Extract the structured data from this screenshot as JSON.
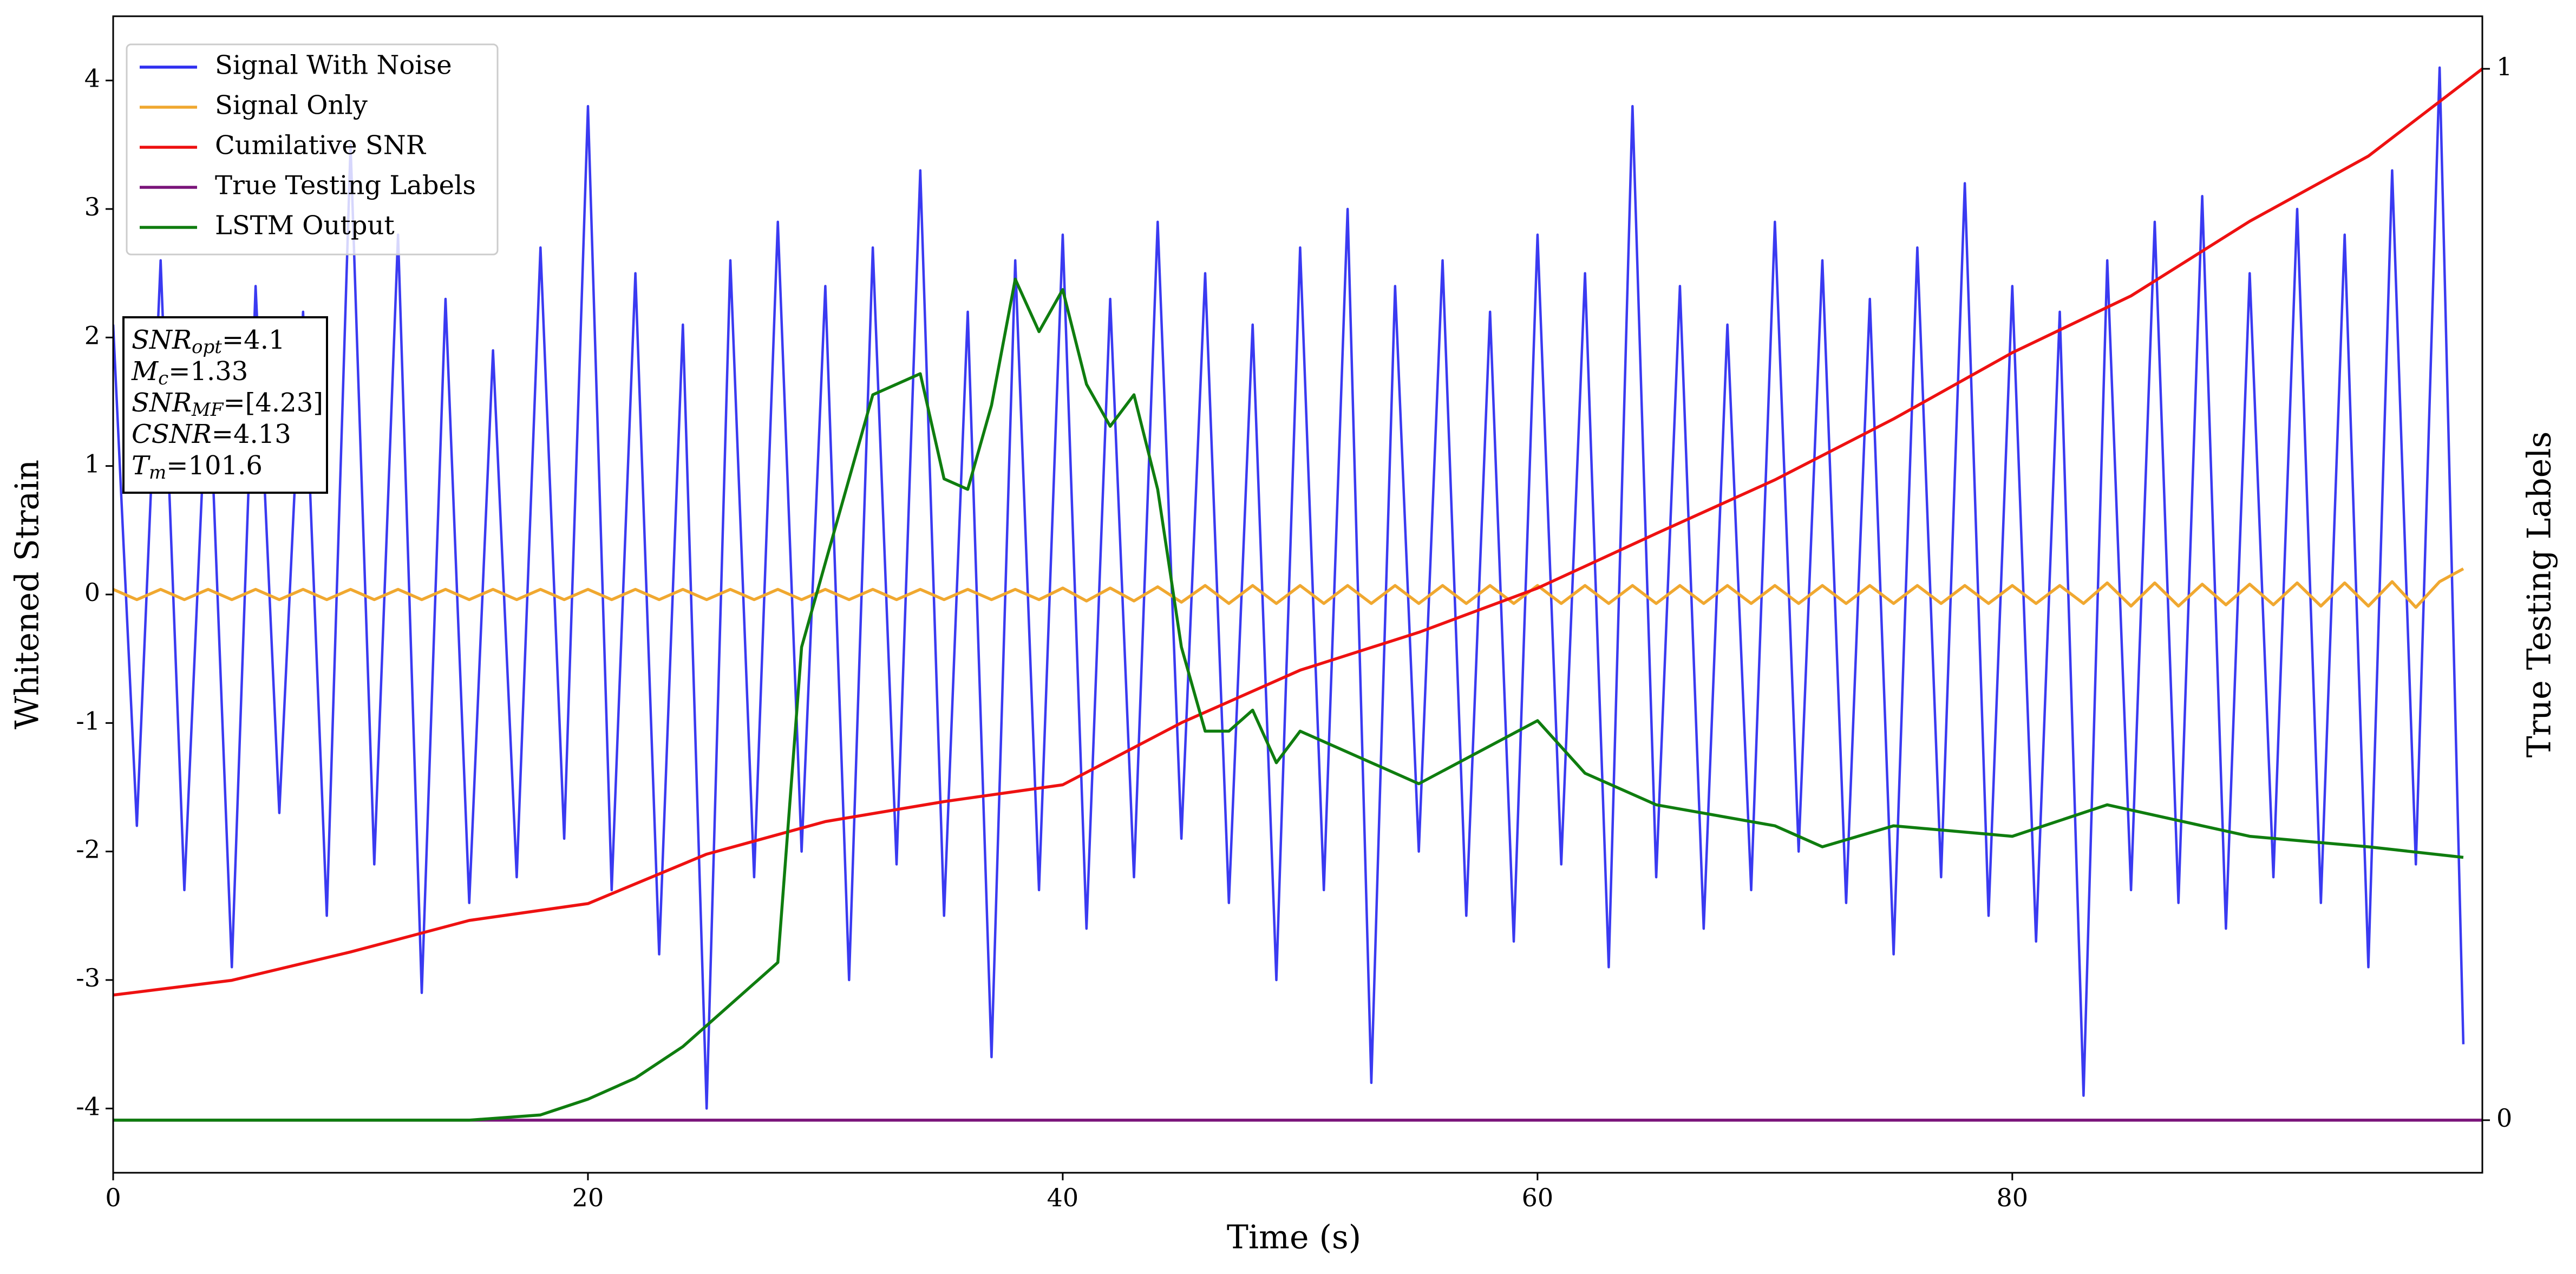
{
  "chart_data": {
    "type": "line",
    "xlabel": "Time (s)",
    "ylabel": "Whitened Strain",
    "y2label": "True Testing Labels",
    "xlim": [
      0,
      99.8
    ],
    "xticks": [
      0,
      20,
      40,
      60,
      80
    ],
    "ylim": [
      -4.5,
      4.5
    ],
    "yticks": [
      -4,
      -3,
      -2,
      -1,
      0,
      1,
      2,
      3,
      4
    ],
    "y2lim": [
      -0.05,
      1.05
    ],
    "y2ticks": [
      0,
      1
    ],
    "grid": false,
    "legend": "upper left",
    "annotation": [
      {
        "base": "SNR",
        "sub": "opt",
        "rest": "=4.1"
      },
      {
        "base": "M",
        "sub": "c",
        "rest": "=1.33"
      },
      {
        "base": "SNR",
        "sub": "MF",
        "rest": "=[4.23]"
      },
      {
        "base": "CSNR",
        "rest": "=4.13"
      },
      {
        "base": "T",
        "sub": "m",
        "rest": "=101.6"
      }
    ],
    "series": [
      {
        "name": "Signal With Noise",
        "color": "#2f2ff0",
        "x": [
          0,
          1,
          2,
          3,
          4,
          5,
          6,
          7,
          8,
          9,
          10,
          11,
          12,
          13,
          14,
          15,
          16,
          17,
          18,
          19,
          20,
          21,
          22,
          23,
          24,
          25,
          26,
          27,
          28,
          29,
          30,
          31,
          32,
          33,
          34,
          35,
          36,
          37,
          38,
          39,
          40,
          41,
          42,
          43,
          44,
          45,
          46,
          47,
          48,
          49,
          50,
          51,
          52,
          53,
          54,
          55,
          56,
          57,
          58,
          59,
          60,
          61,
          62,
          63,
          64,
          65,
          66,
          67,
          68,
          69,
          70,
          71,
          72,
          73,
          74,
          75,
          76,
          77,
          78,
          79,
          80,
          81,
          82,
          83,
          84,
          85,
          86,
          87,
          88,
          89,
          90,
          91,
          92,
          93,
          94,
          95,
          96,
          97,
          98,
          99
        ],
        "values": [
          2.1,
          -1.8,
          2.6,
          -2.3,
          1.9,
          -2.9,
          2.4,
          -1.7,
          2.2,
          -2.5,
          3.5,
          -2.1,
          2.8,
          -3.1,
          2.3,
          -2.4,
          1.9,
          -2.2,
          2.7,
          -1.9,
          3.8,
          -2.3,
          2.5,
          -2.8,
          2.1,
          -4.0,
          2.6,
          -2.2,
          2.9,
          -2.0,
          2.4,
          -3.0,
          2.7,
          -2.1,
          3.3,
          -2.5,
          2.2,
          -3.6,
          2.6,
          -2.3,
          2.8,
          -2.6,
          2.3,
          -2.2,
          2.9,
          -1.9,
          2.5,
          -2.4,
          2.1,
          -3.0,
          2.7,
          -2.3,
          3.0,
          -3.8,
          2.4,
          -2.0,
          2.6,
          -2.5,
          2.2,
          -2.7,
          2.8,
          -2.1,
          2.5,
          -2.9,
          3.8,
          -2.2,
          2.4,
          -2.6,
          2.1,
          -2.3,
          2.9,
          -2.0,
          2.6,
          -2.4,
          2.3,
          -2.8,
          2.7,
          -2.2,
          3.2,
          -2.5,
          2.4,
          -2.7,
          2.2,
          -3.9,
          2.6,
          -2.3,
          2.9,
          -2.4,
          3.1,
          -2.6,
          2.5,
          -2.2,
          3.0,
          -2.4,
          2.8,
          -2.9,
          3.3,
          -2.1,
          4.1,
          -3.5
        ]
      },
      {
        "name": "Signal Only",
        "color": "#f0a830",
        "x": [
          0,
          1,
          2,
          3,
          4,
          5,
          6,
          7,
          8,
          9,
          10,
          11,
          12,
          13,
          14,
          15,
          16,
          17,
          18,
          19,
          20,
          21,
          22,
          23,
          24,
          25,
          26,
          27,
          28,
          29,
          30,
          31,
          32,
          33,
          34,
          35,
          36,
          37,
          38,
          39,
          40,
          41,
          42,
          43,
          44,
          45,
          46,
          47,
          48,
          49,
          50,
          51,
          52,
          53,
          54,
          55,
          56,
          57,
          58,
          59,
          60,
          61,
          62,
          63,
          64,
          65,
          66,
          67,
          68,
          69,
          70,
          71,
          72,
          73,
          74,
          75,
          76,
          77,
          78,
          79,
          80,
          81,
          82,
          83,
          84,
          85,
          86,
          87,
          88,
          89,
          90,
          91,
          92,
          93,
          94,
          95,
          96,
          97,
          98,
          99
        ],
        "values": [
          0.04,
          -0.04,
          0.04,
          -0.04,
          0.04,
          -0.04,
          0.04,
          -0.04,
          0.04,
          -0.04,
          0.04,
          -0.04,
          0.04,
          -0.04,
          0.04,
          -0.04,
          0.04,
          -0.04,
          0.04,
          -0.04,
          0.04,
          -0.04,
          0.04,
          -0.04,
          0.04,
          -0.04,
          0.04,
          -0.04,
          0.04,
          -0.04,
          0.04,
          -0.04,
          0.04,
          -0.04,
          0.04,
          -0.04,
          0.04,
          -0.04,
          0.04,
          -0.04,
          0.05,
          -0.05,
          0.05,
          -0.05,
          0.06,
          -0.06,
          0.07,
          -0.07,
          0.07,
          -0.07,
          0.07,
          -0.07,
          0.07,
          -0.07,
          0.07,
          -0.07,
          0.07,
          -0.07,
          0.07,
          -0.07,
          0.07,
          -0.07,
          0.07,
          -0.07,
          0.07,
          -0.07,
          0.07,
          -0.07,
          0.07,
          -0.07,
          0.07,
          -0.07,
          0.07,
          -0.07,
          0.07,
          -0.07,
          0.07,
          -0.07,
          0.07,
          -0.07,
          0.07,
          -0.07,
          0.07,
          -0.07,
          0.09,
          -0.09,
          0.09,
          -0.09,
          0.08,
          -0.08,
          0.08,
          -0.08,
          0.09,
          -0.09,
          0.09,
          -0.09,
          0.1,
          -0.1,
          0.1,
          0.2
        ]
      },
      {
        "name": "Cumilative SNR",
        "color": "#ee1111",
        "axis": "y2",
        "x": [
          0,
          5,
          10,
          15,
          20,
          25,
          30,
          35,
          40,
          45,
          50,
          55,
          60,
          65,
          70,
          75,
          80,
          85,
          90,
          95,
          99.8
        ],
        "values": [
          0.119,
          0.133,
          0.16,
          0.19,
          0.206,
          0.253,
          0.284,
          0.303,
          0.319,
          0.378,
          0.428,
          0.464,
          0.506,
          0.558,
          0.609,
          0.667,
          0.73,
          0.784,
          0.855,
          0.917,
          1.0
        ]
      },
      {
        "name": "True Testing Labels",
        "color": "#7a147a",
        "axis": "y2",
        "x": [
          0,
          99.8
        ],
        "values": [
          0,
          0
        ]
      },
      {
        "name": "LSTM Output",
        "color": "#0f7d0f",
        "axis": "y2",
        "x": [
          0,
          15,
          18,
          20,
          22,
          24,
          26,
          28,
          29,
          30,
          31,
          32,
          33,
          34,
          35,
          36,
          37,
          38,
          39,
          40,
          41,
          42,
          43,
          44,
          45,
          46,
          47,
          48,
          49,
          50,
          55,
          60,
          62,
          65,
          70,
          72,
          75,
          80,
          84,
          90,
          95,
          99
        ],
        "values": [
          0,
          0,
          0.005,
          0.02,
          0.04,
          0.07,
          0.11,
          0.15,
          0.45,
          0.53,
          0.61,
          0.69,
          0.7,
          0.71,
          0.61,
          0.6,
          0.68,
          0.8,
          0.75,
          0.79,
          0.7,
          0.66,
          0.69,
          0.6,
          0.45,
          0.37,
          0.37,
          0.39,
          0.34,
          0.37,
          0.32,
          0.38,
          0.33,
          0.3,
          0.28,
          0.26,
          0.28,
          0.27,
          0.3,
          0.27,
          0.26,
          0.25
        ]
      }
    ]
  }
}
